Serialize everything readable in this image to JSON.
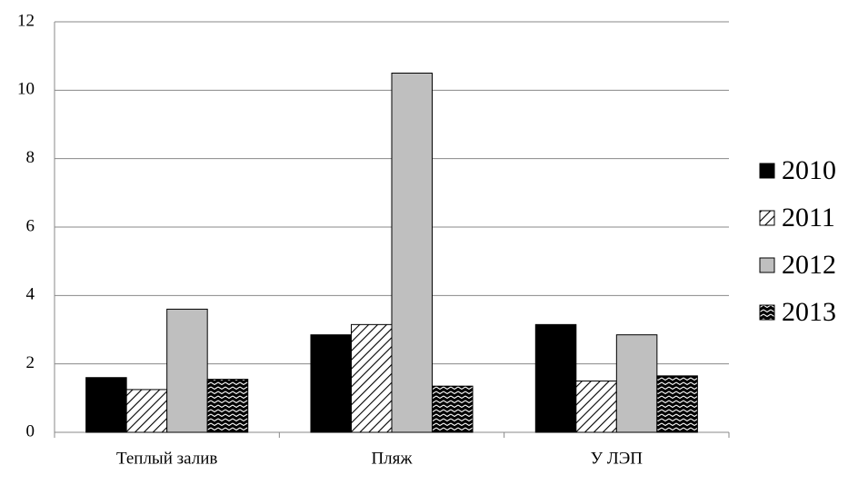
{
  "chart_data": {
    "type": "bar",
    "categories": [
      "Теплый залив",
      "Пляж",
      "У ЛЭП"
    ],
    "series": [
      {
        "name": "2010",
        "color": "#000000",
        "values": [
          1.6,
          2.85,
          3.15
        ]
      },
      {
        "name": "2011",
        "color": "#ffffff",
        "pattern": "diagonal-hatch",
        "values": [
          1.25,
          3.15,
          1.5
        ]
      },
      {
        "name": "2012",
        "color": "#bfbfbf",
        "values": [
          3.6,
          10.5,
          2.85
        ]
      },
      {
        "name": "2013",
        "color": "#000000",
        "pattern": "zigzag",
        "values": [
          1.55,
          1.35,
          1.65
        ]
      }
    ],
    "ylim": [
      0,
      12
    ],
    "yticks": [
      0,
      2,
      4,
      6,
      8,
      10,
      12
    ],
    "grid": true,
    "legend": "right"
  }
}
